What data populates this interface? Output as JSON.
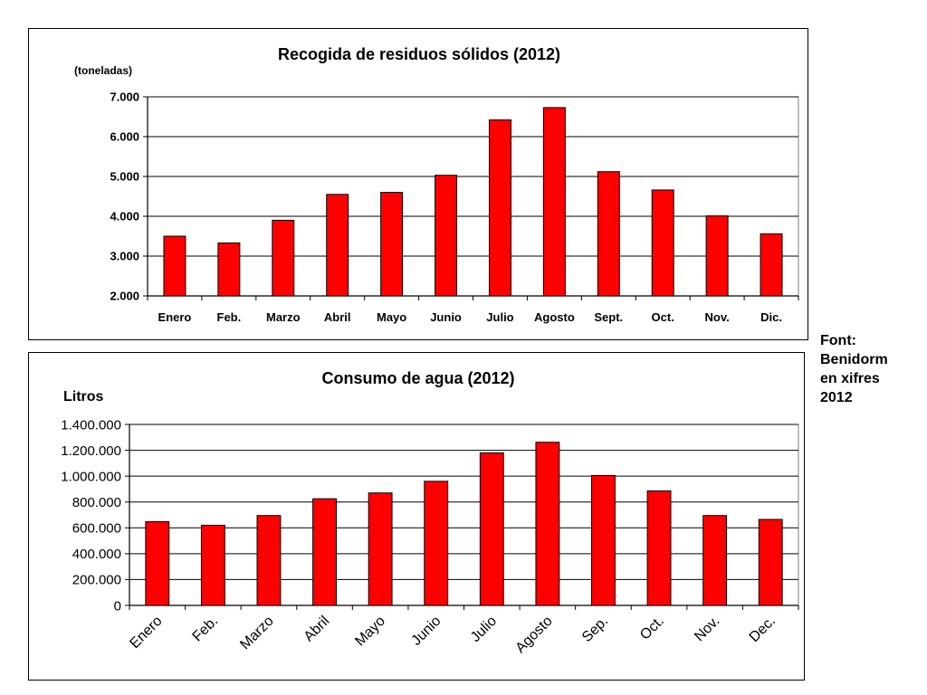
{
  "source_note": [
    "Font:",
    "Benidorm",
    "en xifres",
    "2012"
  ],
  "colors": {
    "bar": "#FF0000",
    "bar_border": "#000000",
    "grid": "#000000",
    "plot_border": "#808080"
  },
  "chart_data": [
    {
      "type": "bar",
      "title": "Recogida de residuos sólidos (2012)",
      "ylabel": "(toneladas)",
      "xlabel": "",
      "categories": [
        "Enero",
        "Feb.",
        "Marzo",
        "Abril",
        "Mayo",
        "Junio",
        "Julio",
        "Agosto",
        "Sept.",
        "Oct.",
        "Nov.",
        "Dic."
      ],
      "values": [
        3500,
        3330,
        3900,
        4550,
        4600,
        5030,
        6420,
        6730,
        5120,
        4660,
        4010,
        3560
      ],
      "ylim": [
        2000,
        7000
      ],
      "yticks": [
        2000,
        3000,
        4000,
        5000,
        6000,
        7000
      ],
      "ytick_labels": [
        "2.000",
        "3.000",
        "4.000",
        "5.000",
        "6.000",
        "7.000"
      ],
      "grid": true,
      "legend": "none"
    },
    {
      "type": "bar",
      "title": "Consumo de agua (2012)",
      "ylabel": "Litros",
      "xlabel": "",
      "categories": [
        "Enero",
        "Feb.",
        "Marzo",
        "Abril",
        "Mayo",
        "Junio",
        "Julio",
        "Agosto",
        "Sep.",
        "Oct.",
        "Nov.",
        "Dec."
      ],
      "values": [
        648000,
        620000,
        695000,
        825000,
        870000,
        960000,
        1180000,
        1262000,
        1005000,
        886000,
        695000,
        665000
      ],
      "ylim": [
        0,
        1400000
      ],
      "yticks": [
        0,
        200000,
        400000,
        600000,
        800000,
        1000000,
        1200000,
        1400000
      ],
      "ytick_labels": [
        "0",
        "200.000",
        "400.000",
        "600.000",
        "800.000",
        "1.000.000",
        "1.200.000",
        "1.400.000"
      ],
      "grid": true,
      "legend": "none"
    }
  ]
}
